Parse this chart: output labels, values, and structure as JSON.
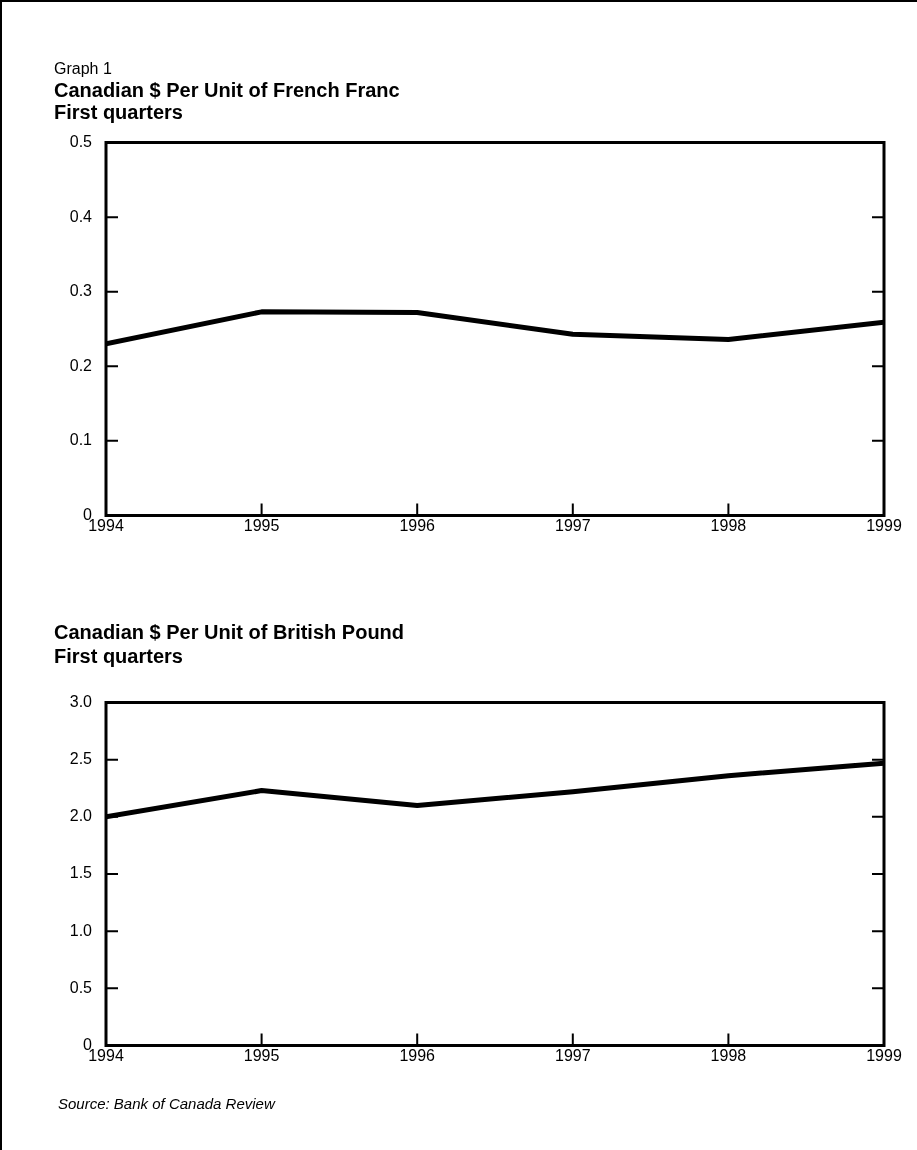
{
  "chart_data": [
    {
      "type": "line",
      "title": "Canadian $ Per Unit of French Franc",
      "subtitle": "First quarters",
      "annotations": [
        "Graph 1"
      ],
      "x": [
        1994,
        1995,
        1996,
        1997,
        1998,
        1999
      ],
      "series": [
        {
          "color": "#000000",
          "values": [
            0.23,
            0.273,
            0.272,
            0.243,
            0.236,
            0.259
          ]
        }
      ],
      "xlim": [
        1994,
        1999
      ],
      "xticks": [
        1994,
        1995,
        1996,
        1997,
        1998,
        1999
      ],
      "ylim": [
        0,
        0.5
      ],
      "yticks": [
        0,
        0.1,
        0.2,
        0.3,
        0.4,
        0.5
      ],
      "grid": false,
      "legend": false,
      "marker": "none",
      "line_style": "solid"
    },
    {
      "type": "line",
      "title": "Canadian $ Per Unit of British Pound",
      "subtitle": "First quarters",
      "annotations": [
        "Source: Bank of Canada Review"
      ],
      "x": [
        1994,
        1995,
        1996,
        1997,
        1998,
        1999
      ],
      "series": [
        {
          "color": "#000000",
          "values": [
            2.0,
            2.23,
            2.1,
            2.22,
            2.36,
            2.47
          ]
        }
      ],
      "xlim": [
        1994,
        1999
      ],
      "xticks": [
        1994,
        1995,
        1996,
        1997,
        1998,
        1999
      ],
      "ylim": [
        0,
        3.0
      ],
      "yticks": [
        0,
        {
          "value": 0.5,
          "label": "0.5"
        },
        {
          "value": 1,
          "label": "1.0"
        },
        {
          "value": 1.5,
          "label": "1.5"
        },
        {
          "value": 2,
          "label": "2.0"
        },
        {
          "value": 2.5,
          "label": "2.5"
        },
        {
          "value": 3,
          "label": "3.0"
        }
      ],
      "grid": false,
      "legend": false,
      "marker": "none",
      "line_style": "solid"
    }
  ]
}
